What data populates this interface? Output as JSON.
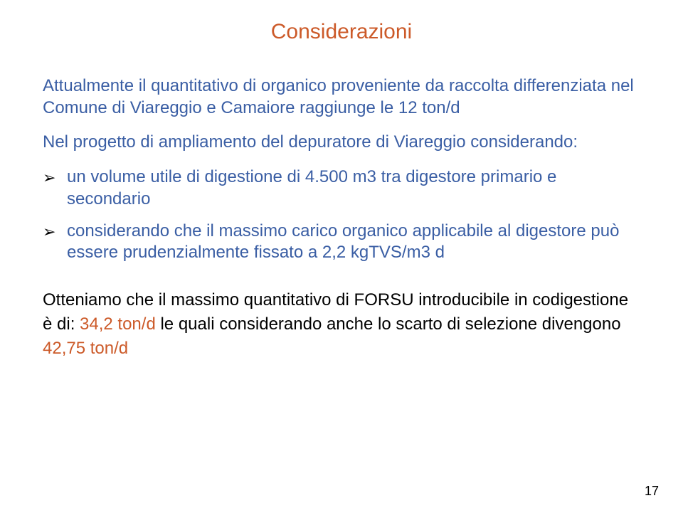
{
  "colors": {
    "title": "#cc5a29",
    "intro": "#3a5ea4",
    "lead": "#3a5ea4",
    "bullet_text": "#3a5ea4",
    "bullet_arrow": "#000000",
    "result_text": "#000000",
    "result_highlight": "#cc5a29",
    "page_number": "#000000",
    "background": "#ffffff"
  },
  "fontsize": {
    "title": 30,
    "body": 24,
    "pagenum": 18
  },
  "title": "Considerazioni",
  "intro": "Attualmente il quantitativo di organico proveniente da raccolta differenziata nel Comune di Viareggio e Camaiore raggiunge le 12 ton/d",
  "lead": "Nel progetto di ampliamento del depuratore di Viareggio considerando:",
  "bullets": [
    "un volume utile di digestione di 4.500 m3 tra digestore primario e secondario",
    "considerando che il massimo carico organico applicabile al digestore può essere prudenzialmente fissato a 2,2 kgTVS/m3 d"
  ],
  "result_pre": "Otteniamo che il massimo quantitativo di FORSU introducibile in codigestione è di: ",
  "result_highlight": "34,2 ton/d",
  "result_post": " le quali considerando anche lo scarto di selezione divengono ",
  "result_highlight2": "42,75 ton/d",
  "page_number": "17"
}
